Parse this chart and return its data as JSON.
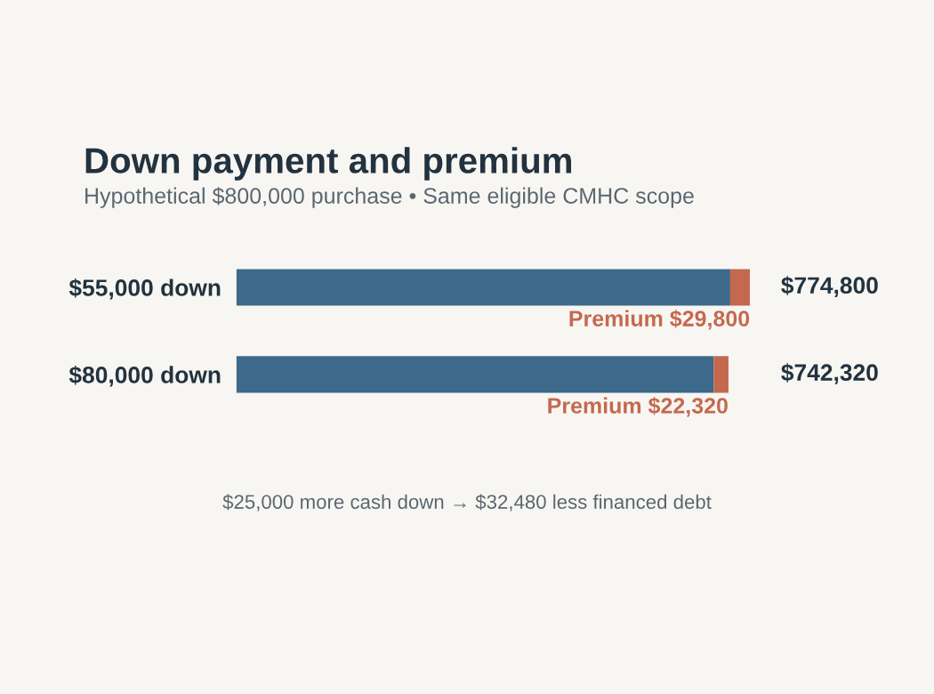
{
  "chart_data": {
    "type": "bar",
    "orientation": "horizontal",
    "stacked": true,
    "title": "Down payment and premium",
    "subtitle": "Hypothetical $800,000 purchase • Same eligible CMHC scope",
    "categories": [
      "$55,000 down",
      "$80,000 down"
    ],
    "series": [
      {
        "color": "#3d6a8a",
        "values": [
          745000,
          720000
        ]
      },
      {
        "color": "#c4694f",
        "values": [
          29800,
          22320
        ],
        "value_labels": [
          "Premium $29,800",
          "Premium $22,320"
        ]
      }
    ],
    "totals": [
      "$774,800",
      "$742,320"
    ],
    "annotations": [
      "$25,000 more cash down → $32,480 less financed debt"
    ]
  }
}
